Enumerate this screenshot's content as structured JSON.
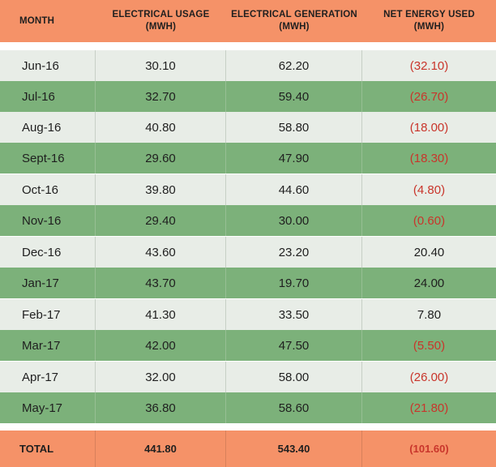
{
  "header": {
    "month": "MONTH",
    "usage_line1": "ELECTRICAL USAGE",
    "usage_line2": "(MWH)",
    "generation_line1": "ELECTRICAL GENERATION",
    "generation_line2": "(MWH)",
    "net_line1": "NET ENERGY USED",
    "net_line2": "(MWH)"
  },
  "rows": [
    {
      "month": "Jun-16",
      "usage": "30.10",
      "generation": "62.20",
      "net": "(32.10)"
    },
    {
      "month": "Jul-16",
      "usage": "32.70",
      "generation": "59.40",
      "net": "(26.70)"
    },
    {
      "month": "Aug-16",
      "usage": "40.80",
      "generation": "58.80",
      "net": "(18.00)"
    },
    {
      "month": "Sept-16",
      "usage": "29.60",
      "generation": "47.90",
      "net": "(18.30)"
    },
    {
      "month": "Oct-16",
      "usage": "39.80",
      "generation": "44.60",
      "net": "(4.80)"
    },
    {
      "month": "Nov-16",
      "usage": "29.40",
      "generation": "30.00",
      "net": "(0.60)"
    },
    {
      "month": "Dec-16",
      "usage": "43.60",
      "generation": "23.20",
      "net": "20.40"
    },
    {
      "month": "Jan-17",
      "usage": "43.70",
      "generation": "19.70",
      "net": "24.00"
    },
    {
      "month": "Feb-17",
      "usage": "41.30",
      "generation": "33.50",
      "net": "7.80"
    },
    {
      "month": "Mar-17",
      "usage": "42.00",
      "generation": "47.50",
      "net": "(5.50)"
    },
    {
      "month": "Apr-17",
      "usage": "32.00",
      "generation": "58.00",
      "net": "(26.00)"
    },
    {
      "month": "May-17",
      "usage": "36.80",
      "generation": "58.60",
      "net": "(21.80)"
    }
  ],
  "total": {
    "label": "TOTAL",
    "usage": "441.80",
    "generation": "543.40",
    "net": "(101.60)"
  },
  "colors": {
    "header_bg": "#f59268",
    "row_light": "#e8ede7",
    "row_green": "#7cb17a",
    "negative_text": "#c9352b"
  }
}
